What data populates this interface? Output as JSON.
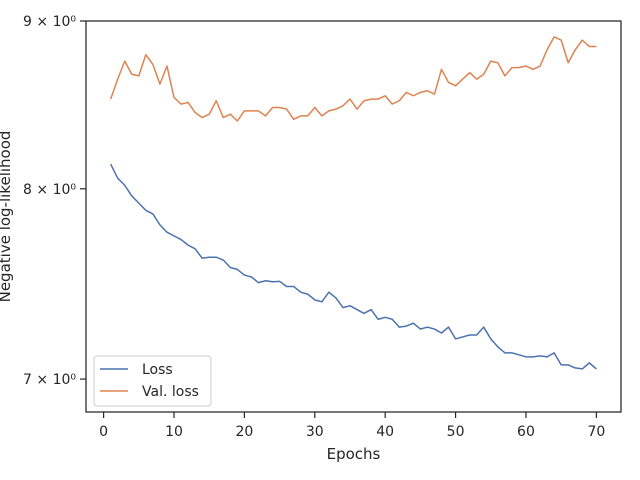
{
  "chart_data": {
    "type": "line",
    "xlabel": "Epochs",
    "ylabel": "Negative log-likelihood",
    "yscale": "log",
    "xlim": [
      -2.5,
      73.5
    ],
    "ylim": [
      6.84,
      9.0
    ],
    "xticks": [
      0,
      10,
      20,
      30,
      40,
      50,
      60,
      70
    ],
    "yticks": [
      {
        "value": 7,
        "label": "7 × 10⁰"
      },
      {
        "value": 8,
        "label": "8 × 10⁰"
      },
      {
        "value": 9,
        "label": "9 × 10⁰"
      }
    ],
    "grid": false,
    "legend": "lower-left",
    "x": [
      1,
      2,
      3,
      4,
      5,
      6,
      7,
      8,
      9,
      10,
      11,
      12,
      13,
      14,
      15,
      16,
      17,
      18,
      19,
      20,
      21,
      22,
      23,
      24,
      25,
      26,
      27,
      28,
      29,
      30,
      31,
      32,
      33,
      34,
      35,
      36,
      37,
      38,
      39,
      40,
      41,
      42,
      43,
      44,
      45,
      46,
      47,
      48,
      49,
      50,
      51,
      52,
      53,
      54,
      55,
      56,
      57,
      58,
      59,
      60,
      61,
      62,
      63,
      64,
      65,
      66,
      67,
      68,
      69,
      70
    ],
    "series": [
      {
        "name": "Loss",
        "color": "#4c72b0",
        "values": [
          8.14,
          8.06,
          8.02,
          7.96,
          7.92,
          7.88,
          7.86,
          7.8,
          7.76,
          7.74,
          7.72,
          7.69,
          7.67,
          7.62,
          7.625,
          7.625,
          7.61,
          7.57,
          7.56,
          7.53,
          7.52,
          7.49,
          7.5,
          7.495,
          7.497,
          7.47,
          7.47,
          7.44,
          7.43,
          7.4,
          7.39,
          7.44,
          7.41,
          7.36,
          7.37,
          7.35,
          7.33,
          7.35,
          7.3,
          7.31,
          7.3,
          7.26,
          7.265,
          7.28,
          7.25,
          7.26,
          7.25,
          7.23,
          7.26,
          7.2,
          7.21,
          7.22,
          7.22,
          7.26,
          7.2,
          7.16,
          7.13,
          7.13,
          7.12,
          7.11,
          7.11,
          7.115,
          7.11,
          7.13,
          7.07,
          7.07,
          7.055,
          7.05,
          7.08,
          7.05
        ]
      },
      {
        "name": "Val. loss",
        "color": "#dd8452",
        "values": [
          8.52,
          8.64,
          8.75,
          8.67,
          8.66,
          8.79,
          8.73,
          8.61,
          8.72,
          8.53,
          8.49,
          8.5,
          8.44,
          8.41,
          8.43,
          8.51,
          8.41,
          8.43,
          8.39,
          8.45,
          8.45,
          8.45,
          8.42,
          8.47,
          8.47,
          8.46,
          8.4,
          8.42,
          8.42,
          8.47,
          8.42,
          8.45,
          8.46,
          8.48,
          8.52,
          8.46,
          8.51,
          8.52,
          8.52,
          8.54,
          8.49,
          8.51,
          8.56,
          8.54,
          8.56,
          8.57,
          8.55,
          8.7,
          8.62,
          8.6,
          8.64,
          8.68,
          8.64,
          8.67,
          8.75,
          8.74,
          8.66,
          8.71,
          8.71,
          8.72,
          8.7,
          8.72,
          8.82,
          8.9,
          8.88,
          8.74,
          8.82,
          8.88,
          8.84,
          8.84
        ]
      }
    ]
  }
}
